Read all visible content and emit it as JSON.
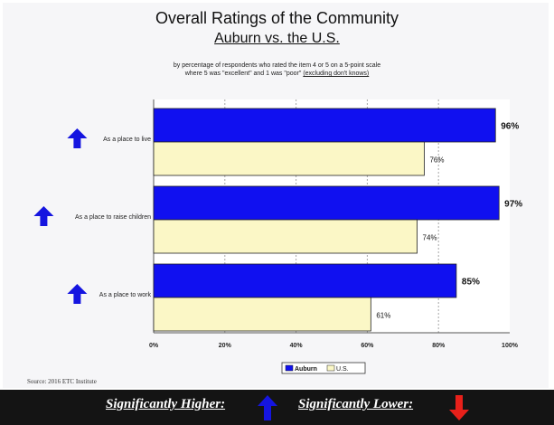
{
  "title": "Overall Ratings of the Community",
  "subtitle": "Auburn vs. the U.S.",
  "caption_line1": "by percentage of respondents who rated the item 4 or 5 on a 5-point scale",
  "caption_line2_a": "where 5 was \"excellent\" and 1 was \"poor\" ",
  "caption_line2_b": "(excluding don't knows)",
  "source": "Source:  2016 ETC Institute",
  "footer": {
    "higher_label": "Significantly Higher:",
    "lower_label": "Significantly Lower:",
    "higher_icon": "blue-up-arrow-icon",
    "lower_icon": "red-down-arrow-icon"
  },
  "colors": {
    "auburn": "#1010f0",
    "us": "#fbf7c6",
    "arrow_up": "#1515e0",
    "arrow_down": "#e8201a",
    "footer_bg": "#141414"
  },
  "chart_data": {
    "type": "bar",
    "orientation": "horizontal",
    "categories": [
      "As a place to live",
      "As a place to raise children",
      "As a place to work"
    ],
    "series": [
      {
        "name": "Auburn",
        "values": [
          96,
          97,
          85
        ],
        "labels": [
          "96%",
          "97%",
          "85%"
        ]
      },
      {
        "name": "U.S.",
        "values": [
          76,
          74,
          61
        ],
        "labels": [
          "76%",
          "74%",
          "61%"
        ]
      }
    ],
    "significance": [
      "higher",
      "higher",
      "higher"
    ],
    "xlim": [
      0,
      100
    ],
    "xticks": [
      "0%",
      "20%",
      "40%",
      "60%",
      "80%",
      "100%"
    ],
    "grid": true,
    "legend": "bottom-center"
  }
}
